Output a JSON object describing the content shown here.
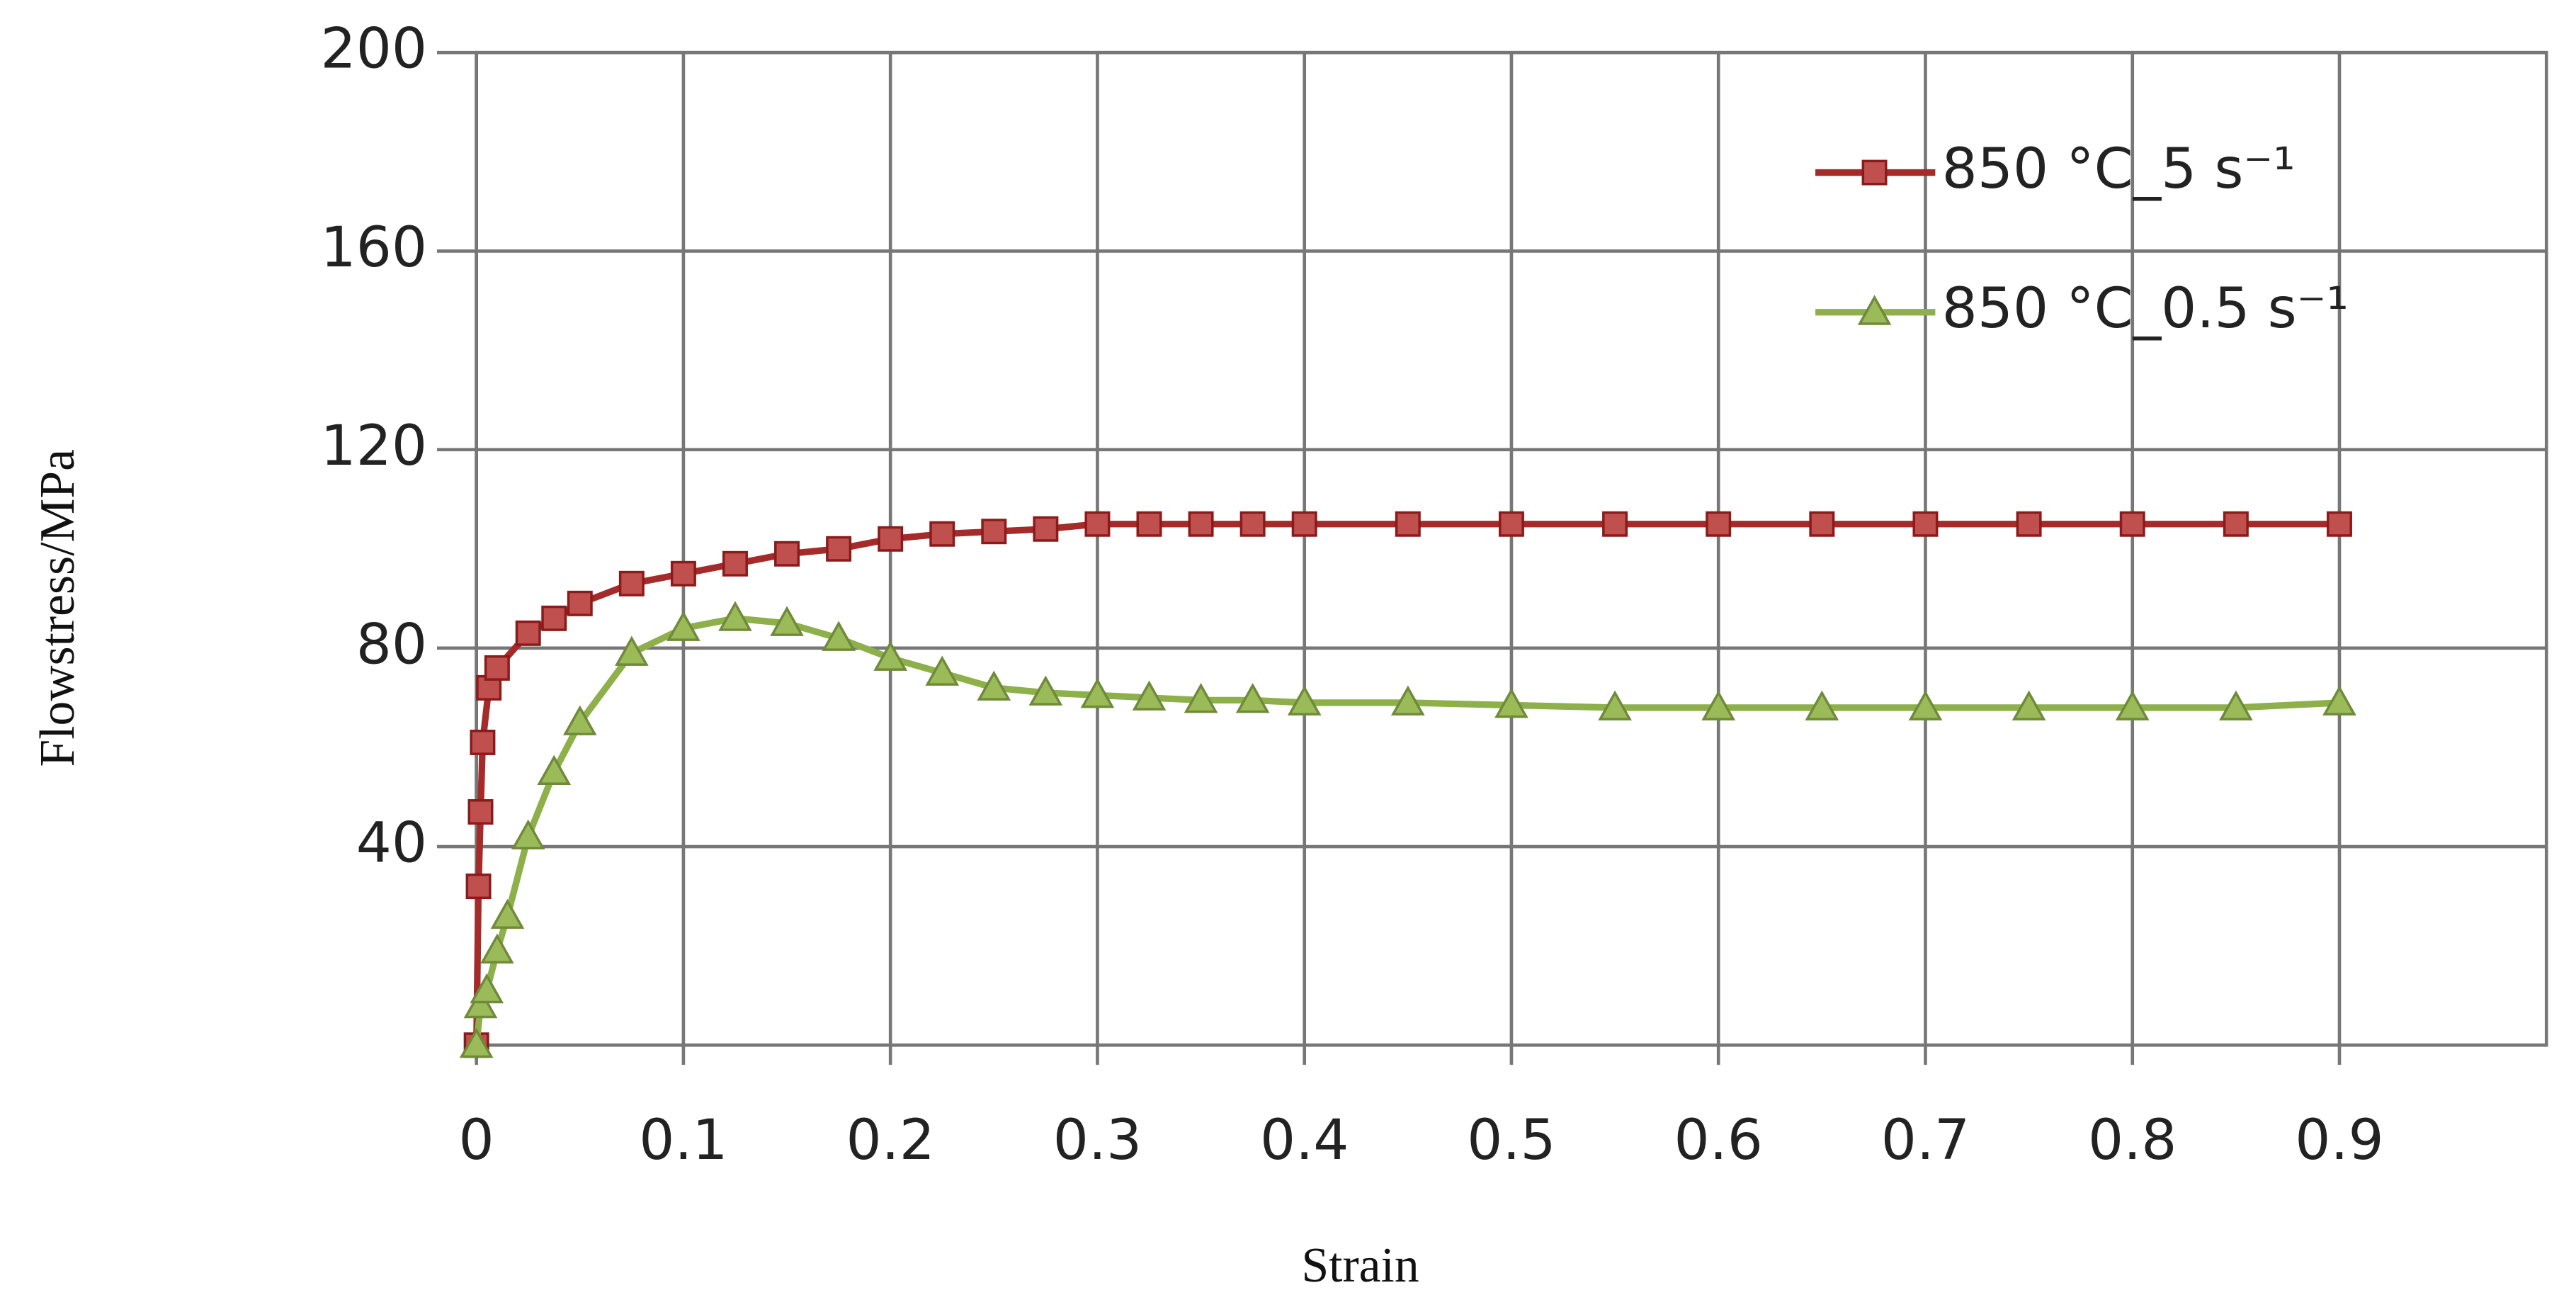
{
  "chart_data": {
    "type": "line",
    "x_label": "Strain",
    "y_label": "Flowstress/MPa",
    "xlim": [
      0,
      1
    ],
    "xticks": [
      0,
      0.1,
      0.2,
      0.3,
      0.4,
      0.5,
      0.6,
      0.7,
      0.8,
      0.9
    ],
    "ylim": [
      0,
      200
    ],
    "yticks": [
      40,
      80,
      120,
      160,
      200
    ],
    "grid": true,
    "legend": "upper right",
    "series": [
      {
        "name": "850 °C_5 s⁻¹",
        "color": "#a52a2a",
        "marker": "square",
        "x": [
          0,
          0.001,
          0.002,
          0.003,
          0.006,
          0.01,
          0.025,
          0.0375,
          0.05,
          0.075,
          0.1,
          0.125,
          0.15,
          0.175,
          0.2,
          0.225,
          0.25,
          0.275,
          0.3,
          0.325,
          0.35,
          0.375,
          0.4,
          0.45,
          0.5,
          0.55,
          0.6,
          0.65,
          0.7,
          0.75,
          0.8,
          0.85,
          0.9
        ],
        "values": [
          0,
          32,
          47,
          61,
          72,
          76,
          83,
          86,
          89,
          93,
          95,
          97,
          99,
          100,
          102,
          103,
          103.5,
          104,
          105,
          105,
          105,
          105,
          105,
          105,
          105,
          105,
          105,
          105,
          105,
          105,
          105,
          105,
          105
        ]
      },
      {
        "name": "850 °C_0.5 s⁻¹",
        "color": "#8db04a",
        "marker": "triangle",
        "x": [
          0,
          0.002,
          0.005,
          0.01,
          0.015,
          0.025,
          0.0375,
          0.05,
          0.075,
          0.1,
          0.125,
          0.15,
          0.175,
          0.2,
          0.225,
          0.25,
          0.275,
          0.3,
          0.325,
          0.35,
          0.375,
          0.4,
          0.45,
          0.5,
          0.55,
          0.6,
          0.65,
          0.7,
          0.75,
          0.8,
          0.85,
          0.9
        ],
        "values": [
          0,
          8,
          11,
          19,
          26,
          42,
          55,
          65,
          79,
          84,
          86,
          85,
          82,
          78,
          75,
          72,
          71,
          70.5,
          70,
          69.5,
          69.5,
          69,
          69,
          68.5,
          68,
          68,
          68,
          68,
          68,
          68,
          68,
          69
        ]
      }
    ]
  }
}
